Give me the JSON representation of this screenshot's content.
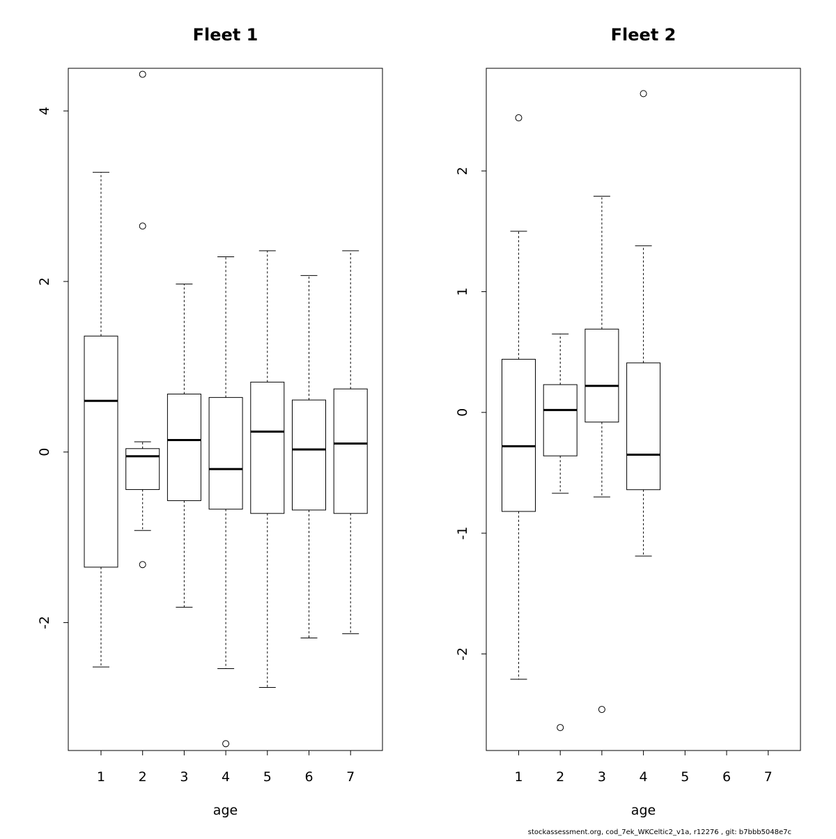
{
  "footer": "stockassessment.org, cod_7ek_WKCeltic2_v1a, r12276 , git: b7bbb5048e7c",
  "chart_data": [
    {
      "type": "boxplot",
      "title": "Fleet 1",
      "xlabel": "age",
      "ylabel": "",
      "categories": [
        "1",
        "2",
        "3",
        "4",
        "5",
        "6",
        "7"
      ],
      "ylim": [
        -3.5,
        4.5
      ],
      "yticks": [
        -2,
        0,
        2,
        4
      ],
      "grid": false,
      "boxes": [
        {
          "category": "1",
          "whisker_low": -2.52,
          "q1": -1.35,
          "median": 0.6,
          "q3": 1.36,
          "whisker_high": 3.28,
          "outliers": []
        },
        {
          "category": "2",
          "whisker_low": -0.92,
          "q1": -0.44,
          "median": -0.05,
          "q3": 0.04,
          "whisker_high": 0.12,
          "outliers": [
            4.43,
            2.65,
            -1.32
          ]
        },
        {
          "category": "3",
          "whisker_low": -1.82,
          "q1": -0.57,
          "median": 0.14,
          "q3": 0.68,
          "whisker_high": 1.97,
          "outliers": []
        },
        {
          "category": "4",
          "whisker_low": -2.54,
          "q1": -0.67,
          "median": -0.2,
          "q3": 0.64,
          "whisker_high": 2.29,
          "outliers": [
            -3.42
          ]
        },
        {
          "category": "5",
          "whisker_low": -2.76,
          "q1": -0.72,
          "median": 0.24,
          "q3": 0.82,
          "whisker_high": 2.36,
          "outliers": []
        },
        {
          "category": "6",
          "whisker_low": -2.18,
          "q1": -0.68,
          "median": 0.03,
          "q3": 0.61,
          "whisker_high": 2.07,
          "outliers": []
        },
        {
          "category": "7",
          "whisker_low": -2.13,
          "q1": -0.72,
          "median": 0.1,
          "q3": 0.74,
          "whisker_high": 2.36,
          "outliers": []
        }
      ]
    },
    {
      "type": "boxplot",
      "title": "Fleet 2",
      "xlabel": "age",
      "ylabel": "",
      "categories": [
        "1",
        "2",
        "3",
        "4",
        "5",
        "6",
        "7"
      ],
      "ylim": [
        -2.8,
        2.85
      ],
      "yticks": [
        -2,
        -1,
        0,
        1,
        2
      ],
      "grid": false,
      "boxes": [
        {
          "category": "1",
          "whisker_low": -2.21,
          "q1": -0.82,
          "median": -0.28,
          "q3": 0.44,
          "whisker_high": 1.5,
          "outliers": [
            2.44
          ]
        },
        {
          "category": "2",
          "whisker_low": -0.67,
          "q1": -0.36,
          "median": 0.02,
          "q3": 0.23,
          "whisker_high": 0.65,
          "outliers": [
            -2.61
          ]
        },
        {
          "category": "3",
          "whisker_low": -0.7,
          "q1": -0.08,
          "median": 0.22,
          "q3": 0.69,
          "whisker_high": 1.79,
          "outliers": [
            -2.46
          ]
        },
        {
          "category": "4",
          "whisker_low": -1.19,
          "q1": -0.64,
          "median": -0.35,
          "q3": 0.41,
          "whisker_high": 1.38,
          "outliers": [
            2.64
          ]
        }
      ]
    }
  ]
}
